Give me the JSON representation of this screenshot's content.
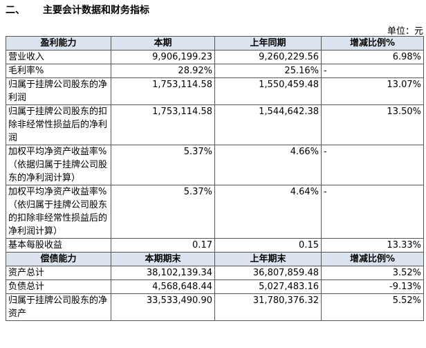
{
  "header": {
    "number": "二、",
    "title": "主要会计数据和财务指标",
    "unit": "单位：元"
  },
  "table": {
    "sections": [
      {
        "header": [
          "盈利能力",
          "本期",
          "上年同期",
          "增减比例%"
        ],
        "rows": [
          [
            "营业收入",
            "9,906,199.23",
            "9,260,229.56",
            "6.98%"
          ],
          [
            "毛利率%",
            "28.92%",
            "25.16%",
            "-"
          ],
          [
            "归属于挂牌公司股东的净利润",
            "1,753,114.58",
            "1,550,459.48",
            "13.07%"
          ],
          [
            "归属于挂牌公司股东的扣除非经常性损益后的净利润",
            "1,753,114.58",
            "1,544,642.38",
            "13.50%"
          ],
          [
            "加权平均净资产收益率%（依据归属于挂牌公司股东的净利润计算）",
            "5.37%",
            "4.66%",
            "-"
          ],
          [
            "加权平均净资产收益率%（依归属于挂牌公司股东的扣除非经常性损益后的净利润计算）",
            "5.37%",
            "4.64%",
            "-"
          ],
          [
            "基本每股收益",
            "0.17",
            "0.15",
            "13.33%"
          ]
        ]
      },
      {
        "header": [
          "偿债能力",
          "本期期末",
          "上年期末",
          "增减比例%"
        ],
        "rows": [
          [
            "资产总计",
            "38,102,139.34",
            "36,807,859.48",
            "3.52%"
          ],
          [
            "负债总计",
            "4,568,648.44",
            "5,027,483.16",
            "-9.13%"
          ],
          [
            "归属于挂牌公司股东的净资产",
            "33,533,490.90",
            "31,780,376.32",
            "5.52%"
          ]
        ]
      }
    ]
  }
}
